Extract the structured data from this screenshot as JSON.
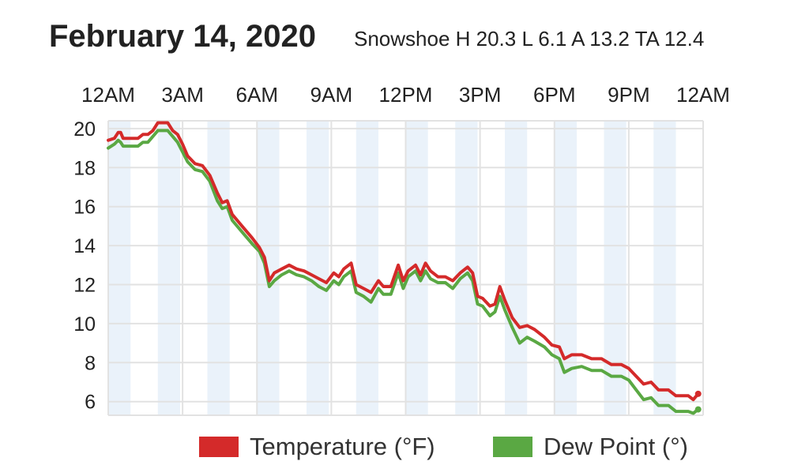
{
  "header": {
    "date": "February 14, 2020",
    "summary": "Snowshoe H 20.3 L 6.1 A 13.2 TA 12.4"
  },
  "legend": {
    "temperature": "Temperature (°F)",
    "dew_point": "Dew Point (°)"
  },
  "colors": {
    "temperature": "#d42a2a",
    "dew_point": "#5aa843",
    "band": "#eaf2fa",
    "grid": "#e2e2e2"
  },
  "chart_data": {
    "type": "line",
    "x_tick_labels": [
      "12AM",
      "3AM",
      "6AM",
      "9AM",
      "12PM",
      "3PM",
      "6PM",
      "9PM",
      "12AM"
    ],
    "y_ticks": [
      6,
      8,
      10,
      12,
      14,
      16,
      18,
      20
    ],
    "ylim": [
      5.3,
      20.4
    ],
    "xlim_hours": [
      0,
      24
    ],
    "grid": true,
    "legend_position": "bottom",
    "series": [
      {
        "name": "Temperature (°F)",
        "color": "#d42a2a",
        "points": [
          [
            0,
            19.4
          ],
          [
            0.25,
            19.5
          ],
          [
            0.4,
            19.8
          ],
          [
            0.5,
            19.8
          ],
          [
            0.6,
            19.5
          ],
          [
            1.0,
            19.5
          ],
          [
            1.2,
            19.5
          ],
          [
            1.4,
            19.7
          ],
          [
            1.6,
            19.7
          ],
          [
            1.8,
            19.9
          ],
          [
            2.0,
            20.3
          ],
          [
            2.4,
            20.3
          ],
          [
            2.6,
            19.9
          ],
          [
            2.8,
            19.7
          ],
          [
            3.0,
            19.2
          ],
          [
            3.2,
            18.6
          ],
          [
            3.5,
            18.2
          ],
          [
            3.8,
            18.1
          ],
          [
            4.1,
            17.6
          ],
          [
            4.4,
            16.7
          ],
          [
            4.6,
            16.2
          ],
          [
            4.8,
            16.3
          ],
          [
            5.0,
            15.6
          ],
          [
            5.4,
            15.0
          ],
          [
            5.8,
            14.4
          ],
          [
            6.1,
            13.9
          ],
          [
            6.3,
            13.4
          ],
          [
            6.5,
            12.2
          ],
          [
            6.7,
            12.6
          ],
          [
            7.0,
            12.8
          ],
          [
            7.3,
            13.0
          ],
          [
            7.6,
            12.8
          ],
          [
            7.9,
            12.7
          ],
          [
            8.2,
            12.5
          ],
          [
            8.5,
            12.3
          ],
          [
            8.8,
            12.1
          ],
          [
            9.1,
            12.6
          ],
          [
            9.3,
            12.4
          ],
          [
            9.5,
            12.8
          ],
          [
            9.8,
            13.1
          ],
          [
            10.0,
            12.0
          ],
          [
            10.3,
            11.8
          ],
          [
            10.6,
            11.6
          ],
          [
            10.9,
            12.2
          ],
          [
            11.1,
            11.9
          ],
          [
            11.4,
            11.9
          ],
          [
            11.7,
            13.0
          ],
          [
            11.9,
            12.2
          ],
          [
            12.1,
            12.7
          ],
          [
            12.4,
            13.0
          ],
          [
            12.6,
            12.5
          ],
          [
            12.8,
            13.1
          ],
          [
            13.0,
            12.7
          ],
          [
            13.3,
            12.4
          ],
          [
            13.6,
            12.4
          ],
          [
            13.9,
            12.2
          ],
          [
            14.2,
            12.6
          ],
          [
            14.5,
            12.9
          ],
          [
            14.7,
            12.6
          ],
          [
            14.9,
            11.4
          ],
          [
            15.1,
            11.3
          ],
          [
            15.4,
            10.9
          ],
          [
            15.6,
            11.0
          ],
          [
            15.8,
            11.9
          ],
          [
            16.0,
            11.2
          ],
          [
            16.3,
            10.3
          ],
          [
            16.6,
            9.8
          ],
          [
            16.9,
            9.9
          ],
          [
            17.2,
            9.7
          ],
          [
            17.6,
            9.3
          ],
          [
            17.9,
            8.9
          ],
          [
            18.2,
            8.8
          ],
          [
            18.4,
            8.2
          ],
          [
            18.7,
            8.4
          ],
          [
            19.1,
            8.4
          ],
          [
            19.5,
            8.2
          ],
          [
            19.9,
            8.2
          ],
          [
            20.3,
            7.9
          ],
          [
            20.7,
            7.9
          ],
          [
            21.0,
            7.7
          ],
          [
            21.3,
            7.3
          ],
          [
            21.6,
            6.9
          ],
          [
            21.9,
            7.0
          ],
          [
            22.2,
            6.6
          ],
          [
            22.6,
            6.6
          ],
          [
            22.9,
            6.3
          ],
          [
            23.4,
            6.3
          ],
          [
            23.6,
            6.1
          ],
          [
            23.8,
            6.4
          ]
        ]
      },
      {
        "name": "Dew Point (°)",
        "color": "#5aa843",
        "points": [
          [
            0,
            19.0
          ],
          [
            0.25,
            19.2
          ],
          [
            0.4,
            19.4
          ],
          [
            0.5,
            19.3
          ],
          [
            0.6,
            19.1
          ],
          [
            1.0,
            19.1
          ],
          [
            1.2,
            19.1
          ],
          [
            1.4,
            19.3
          ],
          [
            1.6,
            19.3
          ],
          [
            1.8,
            19.6
          ],
          [
            2.0,
            19.9
          ],
          [
            2.4,
            19.9
          ],
          [
            2.6,
            19.6
          ],
          [
            2.8,
            19.3
          ],
          [
            3.0,
            18.8
          ],
          [
            3.2,
            18.3
          ],
          [
            3.5,
            17.9
          ],
          [
            3.8,
            17.8
          ],
          [
            4.1,
            17.3
          ],
          [
            4.4,
            16.3
          ],
          [
            4.6,
            15.9
          ],
          [
            4.8,
            16.0
          ],
          [
            5.0,
            15.3
          ],
          [
            5.4,
            14.7
          ],
          [
            5.8,
            14.1
          ],
          [
            6.1,
            13.7
          ],
          [
            6.3,
            13.1
          ],
          [
            6.5,
            11.9
          ],
          [
            6.7,
            12.2
          ],
          [
            7.0,
            12.5
          ],
          [
            7.3,
            12.7
          ],
          [
            7.6,
            12.5
          ],
          [
            7.9,
            12.4
          ],
          [
            8.2,
            12.2
          ],
          [
            8.5,
            11.9
          ],
          [
            8.8,
            11.7
          ],
          [
            9.1,
            12.2
          ],
          [
            9.3,
            12.0
          ],
          [
            9.5,
            12.4
          ],
          [
            9.8,
            12.7
          ],
          [
            10.0,
            11.6
          ],
          [
            10.3,
            11.4
          ],
          [
            10.6,
            11.1
          ],
          [
            10.9,
            11.8
          ],
          [
            11.1,
            11.5
          ],
          [
            11.4,
            11.5
          ],
          [
            11.7,
            12.6
          ],
          [
            11.9,
            11.8
          ],
          [
            12.1,
            12.4
          ],
          [
            12.4,
            12.7
          ],
          [
            12.6,
            12.2
          ],
          [
            12.8,
            12.7
          ],
          [
            13.0,
            12.3
          ],
          [
            13.3,
            12.1
          ],
          [
            13.6,
            12.1
          ],
          [
            13.9,
            11.8
          ],
          [
            14.2,
            12.3
          ],
          [
            14.5,
            12.6
          ],
          [
            14.7,
            12.2
          ],
          [
            14.9,
            11.0
          ],
          [
            15.1,
            10.9
          ],
          [
            15.4,
            10.4
          ],
          [
            15.6,
            10.6
          ],
          [
            15.8,
            11.4
          ],
          [
            16.0,
            10.7
          ],
          [
            16.3,
            9.8
          ],
          [
            16.6,
            9.0
          ],
          [
            16.9,
            9.3
          ],
          [
            17.2,
            9.1
          ],
          [
            17.6,
            8.8
          ],
          [
            17.9,
            8.4
          ],
          [
            18.2,
            8.2
          ],
          [
            18.4,
            7.5
          ],
          [
            18.7,
            7.7
          ],
          [
            19.1,
            7.8
          ],
          [
            19.5,
            7.6
          ],
          [
            19.9,
            7.6
          ],
          [
            20.3,
            7.3
          ],
          [
            20.7,
            7.3
          ],
          [
            21.0,
            7.1
          ],
          [
            21.3,
            6.6
          ],
          [
            21.6,
            6.1
          ],
          [
            21.9,
            6.2
          ],
          [
            22.2,
            5.8
          ],
          [
            22.6,
            5.8
          ],
          [
            22.9,
            5.5
          ],
          [
            23.4,
            5.5
          ],
          [
            23.6,
            5.4
          ],
          [
            23.8,
            5.6
          ]
        ]
      }
    ]
  }
}
